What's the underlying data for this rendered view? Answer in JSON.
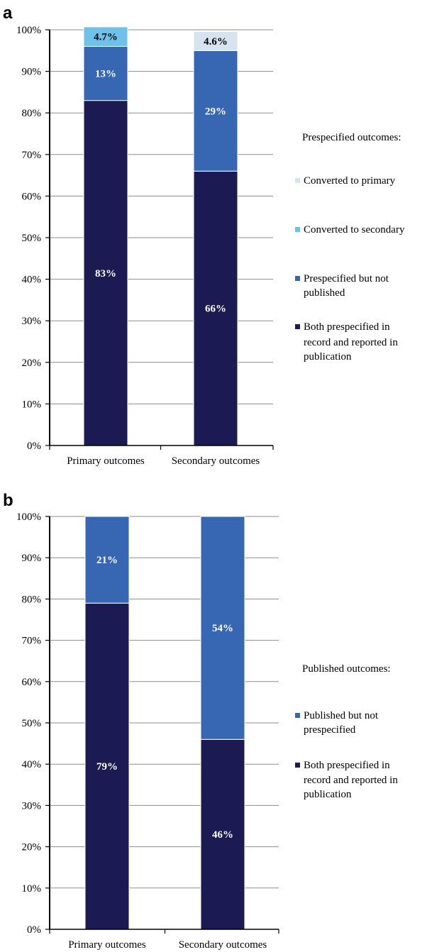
{
  "chart_data": [
    {
      "panel": "a",
      "type": "bar",
      "stacked": true,
      "ylim": [
        0,
        100
      ],
      "y_ticks": [
        "0%",
        "10%",
        "20%",
        "30%",
        "40%",
        "50%",
        "60%",
        "70%",
        "80%",
        "90%",
        "100%"
      ],
      "categories": [
        "Primary outcomes",
        "Secondary outcomes"
      ],
      "legend_title": "Prespecified outcomes:",
      "grid": true,
      "series": [
        {
          "name": "Both prespecified in record and reported in publication",
          "color": "#1c1a52",
          "label_color": "#ffffff",
          "values": [
            83,
            66
          ],
          "labels": [
            "83%",
            "66%"
          ]
        },
        {
          "name": "Prespecified but not published",
          "color": "#3767b2",
          "label_color": "#ffffff",
          "values": [
            13,
            29
          ],
          "labels": [
            "13%",
            "29%"
          ]
        },
        {
          "name": "Converted to secondary",
          "color": "#6ec2ea",
          "label_color": "#000000",
          "values": [
            4.7,
            0
          ],
          "labels": [
            "4.7%",
            ""
          ]
        },
        {
          "name": "Converted to primary",
          "color": "#d6e4f1",
          "label_color": "#000000",
          "values": [
            0,
            4.6
          ],
          "labels": [
            "",
            "4.6%"
          ]
        }
      ],
      "legend_order": [
        3,
        2,
        1,
        0
      ]
    },
    {
      "panel": "b",
      "type": "bar",
      "stacked": true,
      "ylim": [
        0,
        100
      ],
      "y_ticks": [
        "0%",
        "10%",
        "20%",
        "30%",
        "40%",
        "50%",
        "60%",
        "70%",
        "80%",
        "90%",
        "100%"
      ],
      "categories": [
        "Primary outcomes",
        "Secondary outcomes"
      ],
      "legend_title": "Published outcomes:",
      "grid": true,
      "series": [
        {
          "name": "Both prespecified in record and reported in publication",
          "color": "#1c1a52",
          "label_color": "#ffffff",
          "values": [
            79,
            46
          ],
          "labels": [
            "79%",
            "46%"
          ]
        },
        {
          "name": "Published but not prespecified",
          "color": "#3767b2",
          "label_color": "#ffffff",
          "values": [
            21,
            54
          ],
          "labels": [
            "21%",
            "54%"
          ]
        }
      ],
      "legend_order": [
        1,
        0
      ]
    }
  ]
}
